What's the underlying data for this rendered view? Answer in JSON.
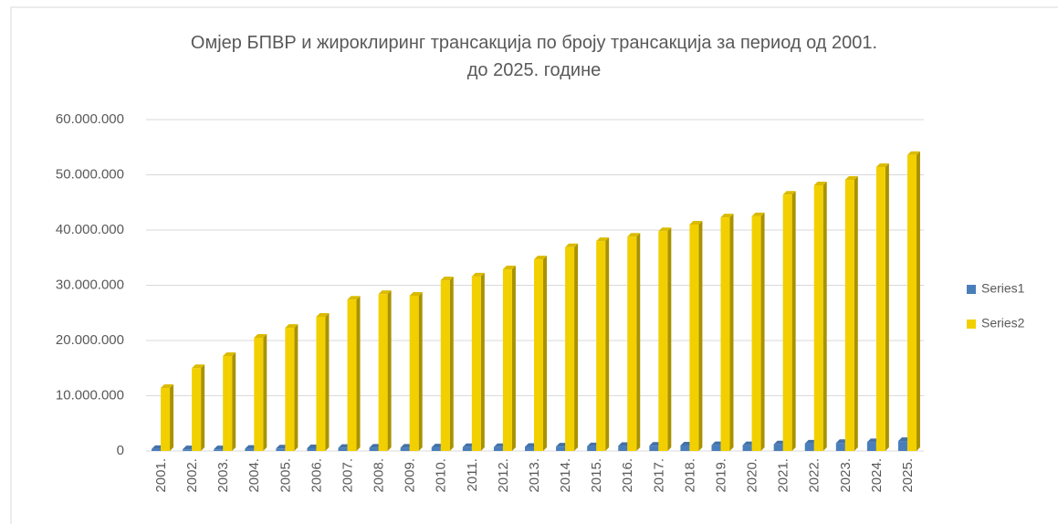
{
  "chart_data": {
    "type": "bar3d",
    "title": "Омјер БПВР и жироклиринг трансакција по броју трансакција за период од 2001. до 2025. године",
    "categories": [
      "2001.",
      "2002.",
      "2003.",
      "2004.",
      "2005.",
      "2006.",
      "2007.",
      "2008.",
      "2009.",
      "2010.",
      "2011.",
      "2012.",
      "2013.",
      "2014.",
      "2015.",
      "2016.",
      "2017.",
      "2018.",
      "2019.",
      "2020.",
      "2021.",
      "2022.",
      "2023.",
      "2024.",
      "2025."
    ],
    "series": [
      {
        "name": "Series1",
        "color": "#4a7ebb",
        "values": [
          350000,
          300000,
          300000,
          400000,
          450000,
          500000,
          550000,
          600000,
          600000,
          650000,
          700000,
          700000,
          750000,
          800000,
          850000,
          900000,
          950000,
          1000000,
          1050000,
          1050000,
          1200000,
          1350000,
          1450000,
          1600000,
          1800000
        ]
      },
      {
        "name": "Series2",
        "color": "#f2d000",
        "values": [
          11400000,
          15000000,
          17200000,
          20500000,
          22300000,
          24300000,
          27400000,
          28400000,
          28100000,
          30900000,
          31600000,
          32900000,
          34700000,
          36900000,
          38000000,
          38800000,
          39800000,
          41000000,
          42300000,
          42500000,
          46400000,
          48100000,
          49100000,
          51400000,
          53600000
        ]
      }
    ],
    "ylim": [
      0,
      60000000
    ],
    "yticks": [
      {
        "value": 0,
        "label": "0"
      },
      {
        "value": 10000000,
        "label": "10.000.000"
      },
      {
        "value": 20000000,
        "label": "20.000.000"
      },
      {
        "value": 30000000,
        "label": "30.000.000"
      },
      {
        "value": 40000000,
        "label": "40.000.000"
      },
      {
        "value": 50000000,
        "label": "50.000.000"
      },
      {
        "value": 60000000,
        "label": "60.000.000"
      }
    ],
    "grid": true,
    "legend": "right"
  }
}
